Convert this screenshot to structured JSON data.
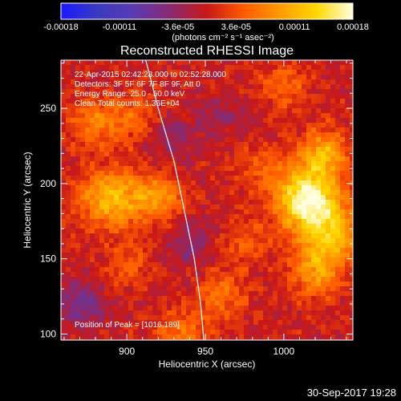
{
  "chart_data": {
    "type": "heatmap",
    "title": "Reconstructed RHESSI Image",
    "xlabel": "Heliocentric X (arcsec)",
    "ylabel": "Heliocentric Y (arcsec)",
    "xlim": [
      858,
      1044
    ],
    "ylim": [
      96,
      282
    ],
    "x_ticks": [
      900,
      950,
      1000
    ],
    "y_ticks": [
      100,
      150,
      200,
      250
    ],
    "colorbar": {
      "range": [
        -0.00018,
        0.00018
      ],
      "tick_labels": [
        "-0.00018",
        "-0.00011",
        "-3.6e-05",
        "3.6e-05",
        "0.00011",
        "0.00018"
      ],
      "label": "(photons cm⁻² s⁻¹ asec⁻²)",
      "colors": [
        "#1a1aff",
        "#3a3ac0",
        "#5a3ab0",
        "#8a2a70",
        "#c81818",
        "#ff5a00",
        "#ff9a00",
        "#ffd800",
        "#ffffe0"
      ]
    },
    "annotations": [
      "22-Apr-2015 02:42:28.000 to 02:52:28.000",
      "Detectors: 3F 5F 6F 7F 8F 9F, Att 0",
      "Energy Range: 25.0 - 50.0 keV",
      "Clean     Total counts: 1.36E+04"
    ],
    "peak_label": "Position of Peak = [1016,189]",
    "peak": [
      1016,
      189
    ],
    "hot_spots": [
      {
        "x": 1015,
        "y": 190,
        "value": 0.00018
      },
      {
        "x": 1030,
        "y": 165,
        "value": 0.00011
      },
      {
        "x": 1025,
        "y": 220,
        "value": 0.0001
      },
      {
        "x": 1020,
        "y": 140,
        "value": 8e-05
      },
      {
        "x": 890,
        "y": 190,
        "value": 0.00011
      },
      {
        "x": 920,
        "y": 190,
        "value": 8e-05
      },
      {
        "x": 880,
        "y": 240,
        "value": 7e-05
      },
      {
        "x": 905,
        "y": 245,
        "value": 5e-05
      },
      {
        "x": 900,
        "y": 145,
        "value": 4e-05
      },
      {
        "x": 960,
        "y": 125,
        "value": 6e-05
      },
      {
        "x": 975,
        "y": 160,
        "value": 4e-05
      },
      {
        "x": 985,
        "y": 210,
        "value": 4e-05
      },
      {
        "x": 935,
        "y": 100,
        "value": 6e-05
      },
      {
        "x": 1000,
        "y": 265,
        "value": 5e-05
      },
      {
        "x": 870,
        "y": 120,
        "value": -6e-05
      },
      {
        "x": 940,
        "y": 160,
        "value": -4e-05
      },
      {
        "x": 930,
        "y": 230,
        "value": -4e-05
      },
      {
        "x": 960,
        "y": 245,
        "value": -3e-05
      }
    ],
    "limb_curve": [
      [
        912,
        282
      ],
      [
        920,
        250
      ],
      [
        930,
        215
      ],
      [
        937,
        180
      ],
      [
        943,
        150
      ],
      [
        947,
        120
      ],
      [
        949,
        96
      ]
    ]
  },
  "footer": {
    "date": "30-Sep-2017 19:28"
  }
}
